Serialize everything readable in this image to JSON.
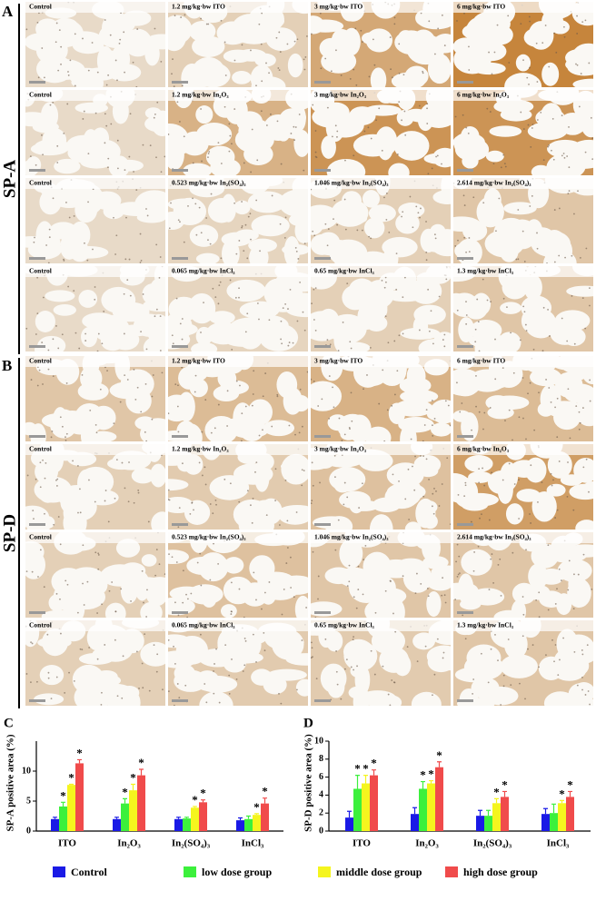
{
  "figure": {
    "panels": [
      {
        "letter": "A",
        "marker": "SP-A",
        "rows": [
          [
            "Control",
            "1.2 mg/kg·bw ITO",
            "3 mg/kg·bw ITO",
            "6 mg/kg·bw ITO"
          ],
          [
            "Control",
            "1.2 mg/kg·bw In₂O₃",
            "3 mg/kg·bw In₂O₃",
            "6 mg/kg·bw In₂O₃"
          ],
          [
            "Control",
            "0.523 mg/kg·bw In₂(SO₄)₃",
            "1.046 mg/kg·bw In₂(SO₄)₃",
            "2.614 mg/kg·bw In₂(SO₄)₃"
          ],
          [
            "Control",
            "0.065 mg/kg·bw InCl₃",
            "0.65 mg/kg·bw InCl₃",
            "1.3 mg/kg·bw InCl₃"
          ]
        ]
      },
      {
        "letter": "B",
        "marker": "SP-D",
        "rows": [
          [
            "Control",
            "1.2 mg/kg·bw ITO",
            "3 mg/kg·bw ITO",
            "6 mg/kg·bw ITO"
          ],
          [
            "Control",
            "1.2 mg/kg·bw In₂O₃",
            "3 mg/kg·bw In₂O₃",
            "6 mg/kg·bw In₂O₃"
          ],
          [
            "Control",
            "0.523 mg/kg·bw In₂(SO₄)₃",
            "1.046 mg/kg·bw In₂(SO₄)₃",
            "2.614 mg/kg·bw In₂(SO₄)₃"
          ],
          [
            "Control",
            "0.065 mg/kg·bw InCl₃",
            "0.65 mg/kg·bw InCl₃",
            "1.3 mg/kg·bw InCl₃"
          ]
        ]
      }
    ]
  },
  "legend": [
    {
      "name": "Control",
      "color": "#1a1ae6"
    },
    {
      "name": "low dose group",
      "color": "#3cf03c"
    },
    {
      "name": "middle dose group",
      "color": "#f5f51e"
    },
    {
      "name": "high dose group",
      "color": "#f04b4b"
    }
  ],
  "chart_data": [
    {
      "type": "bar",
      "letter": "C",
      "ylabel": "SP-A positive area (%)",
      "categories": [
        "ITO",
        "In₂O₃",
        "In₂(SO₄)₃",
        "InCl₃"
      ],
      "ylim": [
        0,
        15
      ],
      "yticks": [
        0,
        5,
        10
      ],
      "significance_marker": "*",
      "series": [
        {
          "values": [
            2.0,
            2.0,
            2.0,
            1.8
          ],
          "errors": [
            0.3,
            0.3,
            0.3,
            0.4
          ],
          "significant": [
            false,
            false,
            false,
            false
          ]
        },
        {
          "values": [
            4.1,
            4.6,
            2.1,
            2.0
          ],
          "errors": [
            0.7,
            0.8,
            0.2,
            0.5
          ],
          "significant": [
            true,
            true,
            false,
            false
          ]
        },
        {
          "values": [
            7.7,
            6.8,
            3.9,
            2.7
          ],
          "errors": [
            0.1,
            1.0,
            0.2,
            0.2
          ],
          "significant": [
            true,
            true,
            true,
            true
          ]
        },
        {
          "values": [
            11.3,
            9.3,
            4.8,
            4.6
          ],
          "errors": [
            0.6,
            1.0,
            0.4,
            0.9
          ],
          "significant": [
            true,
            true,
            true,
            true
          ]
        }
      ]
    },
    {
      "type": "bar",
      "letter": "D",
      "ylabel": "SP-D positive area (%)",
      "categories": [
        "ITO",
        "In₂O₃",
        "In₂(SO₄)₃",
        "InCl₃"
      ],
      "ylim": [
        0,
        10
      ],
      "yticks": [
        0,
        2,
        4,
        6,
        8,
        10
      ],
      "significance_marker": "*",
      "series": [
        {
          "values": [
            1.5,
            1.9,
            1.7,
            1.9
          ],
          "errors": [
            0.7,
            0.7,
            0.6,
            0.6
          ],
          "significant": [
            false,
            false,
            false,
            false
          ]
        },
        {
          "values": [
            4.7,
            4.7,
            1.7,
            2.0
          ],
          "errors": [
            1.5,
            0.8,
            0.6,
            1.0
          ],
          "significant": [
            true,
            true,
            false,
            false
          ]
        },
        {
          "values": [
            5.3,
            5.3,
            3.1,
            3.1
          ],
          "errors": [
            0.9,
            0.3,
            0.5,
            0.3
          ],
          "significant": [
            true,
            true,
            true,
            true
          ]
        },
        {
          "values": [
            6.2,
            7.1,
            3.8,
            3.8
          ],
          "errors": [
            0.6,
            0.6,
            0.6,
            0.6
          ],
          "significant": [
            true,
            true,
            true,
            true
          ]
        }
      ]
    }
  ]
}
